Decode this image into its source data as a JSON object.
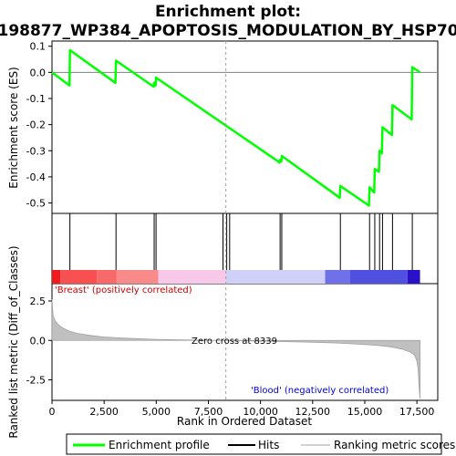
{
  "chart_data": {
    "type": "line",
    "title_line1": "Enrichment plot:",
    "title_line2": "198877_WP384_APOPTOSIS_MODULATION_BY_HSP70",
    "top_panel": {
      "ylabel": "Enrichment score (ES)",
      "ylim": [
        -0.54,
        0.12
      ],
      "yticks": [
        0.1,
        0.0,
        -0.1,
        -0.2,
        -0.3,
        -0.4,
        -0.5
      ],
      "ytick_labels": [
        "0.1",
        "0.0",
        "-0.1",
        "-0.2",
        "-0.3",
        "-0.4",
        "-0.5"
      ],
      "series": [
        {
          "name": "Enrichment profile",
          "color": "#00ff00",
          "x": [
            0,
            840,
            860,
            3040,
            3070,
            4880,
            4900,
            4970,
            4990,
            10920,
            10940,
            11000,
            11020,
            13800,
            13830,
            15200,
            15230,
            15450,
            15480,
            15680,
            15710,
            15820,
            15850,
            16300,
            16330,
            17250,
            17280,
            17650
          ],
          "y": [
            0.0,
            -0.05,
            0.085,
            -0.04,
            0.045,
            -0.055,
            -0.04,
            -0.05,
            -0.02,
            -0.345,
            -0.335,
            -0.34,
            -0.32,
            -0.48,
            -0.435,
            -0.51,
            -0.44,
            -0.46,
            -0.37,
            -0.38,
            -0.3,
            -0.31,
            -0.21,
            -0.24,
            -0.125,
            -0.18,
            0.02,
            0.0
          ]
        }
      ]
    },
    "hits": {
      "name": "Hits",
      "positions": [
        860,
        3070,
        4900,
        4990,
        8200,
        8380,
        8520,
        10940,
        11020,
        13830,
        15230,
        15480,
        15710,
        15850,
        16330,
        17280
      ]
    },
    "rank_bar": {
      "segments": [
        {
          "from": 0,
          "to": 400,
          "color": "#ee1c1c"
        },
        {
          "from": 400,
          "to": 2150,
          "color": "#f85050"
        },
        {
          "from": 2150,
          "to": 3100,
          "color": "#f86a6a"
        },
        {
          "from": 3100,
          "to": 5100,
          "color": "#f88a8a"
        },
        {
          "from": 5100,
          "to": 8339,
          "color": "#f8c8e8"
        },
        {
          "from": 8339,
          "to": 13100,
          "color": "#d0d0f8"
        },
        {
          "from": 13100,
          "to": 14300,
          "color": "#7070e8"
        },
        {
          "from": 14300,
          "to": 17050,
          "color": "#5050e0"
        },
        {
          "from": 17050,
          "to": 17650,
          "color": "#2a10c8"
        }
      ]
    },
    "bottom_panel": {
      "ylabel": "Ranked list metric (Diff_of_Classes)",
      "ylim": [
        -3.8,
        3.6
      ],
      "yticks": [
        2.5,
        0.0,
        -2.5
      ],
      "ytick_labels": [
        "2.5",
        "0.0",
        "-2.5"
      ],
      "series": [
        {
          "name": "Ranking metric scores",
          "color": "#c0c0c0",
          "x": [
            0,
            50,
            150,
            300,
            500,
            800,
            1200,
            1800,
            2500,
            3500,
            5000,
            6500,
            8339,
            10000,
            12000,
            13500,
            14500,
            15500,
            16200,
            16800,
            17200,
            17400,
            17500,
            17560,
            17600,
            17650
          ],
          "y": [
            2.6,
            1.6,
            1.25,
            1.0,
            0.8,
            0.6,
            0.45,
            0.32,
            0.22,
            0.14,
            0.07,
            0.03,
            0.0,
            -0.05,
            -0.1,
            -0.16,
            -0.22,
            -0.3,
            -0.4,
            -0.55,
            -0.75,
            -0.95,
            -1.3,
            -1.8,
            -2.8,
            -3.7
          ]
        }
      ],
      "zero_cross_label": "Zero cross at 8339",
      "zero_cross": 8339,
      "positive_label": "'Breast' (positively correlated)",
      "negative_label": "'Blood' (negatively correlated)"
    },
    "xlabel": "Rank in Ordered Dataset",
    "xlim": [
      0,
      18500
    ],
    "xticks": [
      0,
      2500,
      5000,
      7500,
      10000,
      12500,
      15000,
      17500
    ],
    "xtick_labels": [
      "0",
      "2,500",
      "5,000",
      "7,500",
      "10,000",
      "12,500",
      "15,000",
      "17,500"
    ],
    "legend": {
      "entries": [
        "Enrichment profile",
        "Hits",
        "Ranking metric scores"
      ],
      "placement": "bottom"
    },
    "colors": {
      "profile": "#00ff00",
      "hits": "#000000",
      "metric": "#c0c0c0",
      "positive_text": "#cc0000",
      "negative_text": "#0000cc"
    }
  }
}
